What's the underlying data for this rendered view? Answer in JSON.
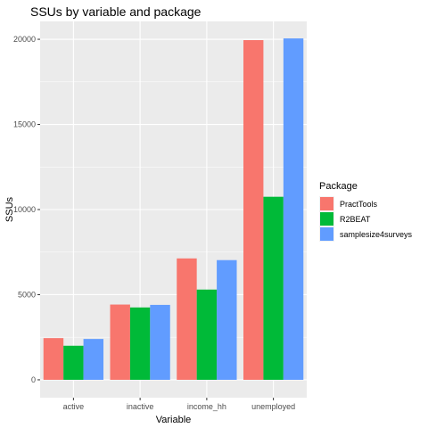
{
  "chart_data": {
    "type": "bar",
    "title": "SSUs by variable and package",
    "xlabel": "Variable",
    "ylabel": "SSUs",
    "categories": [
      "active",
      "inactive",
      "income_hh",
      "unemployed"
    ],
    "series": [
      {
        "name": "PractTools",
        "color": "#F8766D",
        "values": [
          2450,
          4420,
          7130,
          19950
        ]
      },
      {
        "name": "R2BEAT",
        "color": "#00BA38",
        "values": [
          2000,
          4250,
          5300,
          10750
        ]
      },
      {
        "name": "samplesize4surveys",
        "color": "#619CFF",
        "values": [
          2400,
          4400,
          7030,
          20050
        ]
      }
    ],
    "yticks": [
      0,
      5000,
      10000,
      15000,
      20000
    ],
    "ylim": [
      -1050,
      21050
    ],
    "legend_title": "Package",
    "legend_position": "right",
    "grid": true,
    "panel_background": "#EBEBEB"
  }
}
